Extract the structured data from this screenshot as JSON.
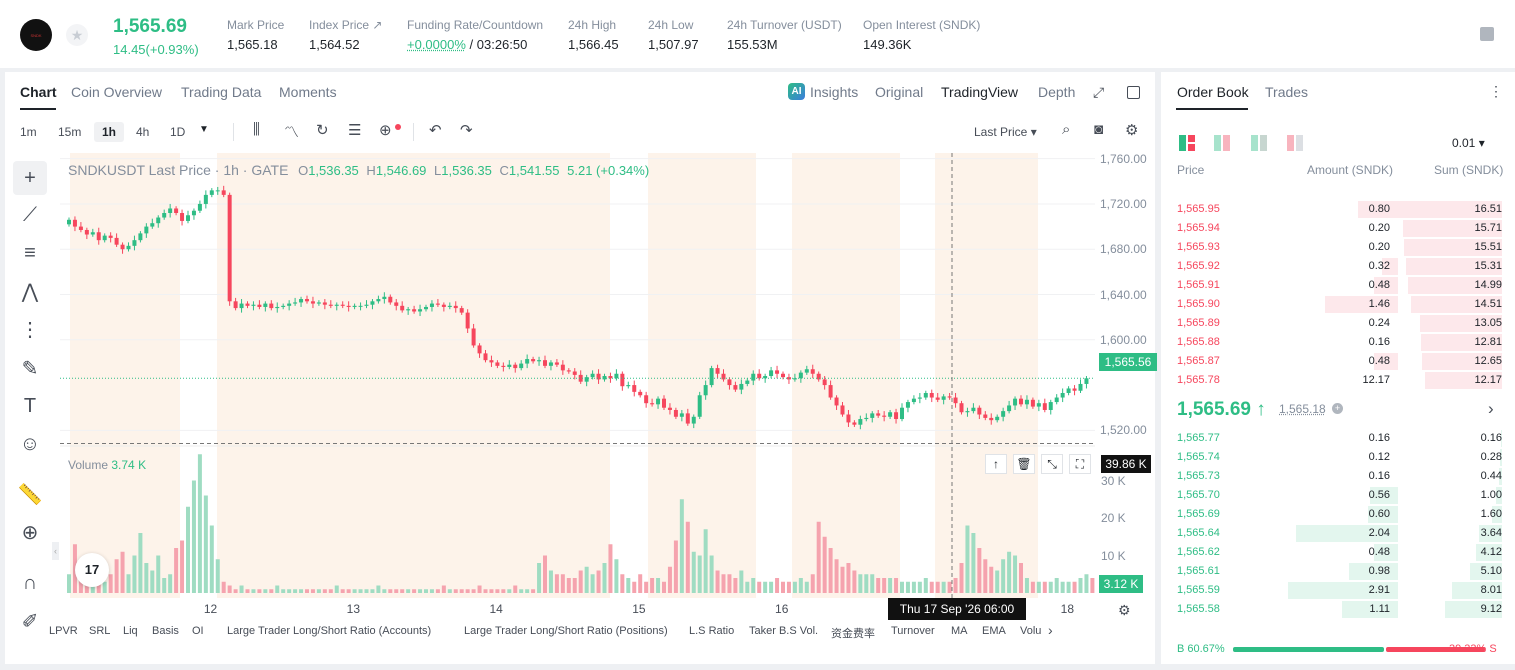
{
  "header": {
    "logo_text": "SNDK",
    "last_price": "1,565.69",
    "change": "14.45(+0.93%)",
    "stats": [
      {
        "label": "Mark Price",
        "value": "1,565.18"
      },
      {
        "label": "Index Price ↗",
        "value": "1,564.52"
      },
      {
        "label": "Funding Rate/Countdown",
        "value_up": "+0.0000%",
        "value": " / 03:26:50"
      },
      {
        "label": "24h High",
        "value": "1,566.45"
      },
      {
        "label": "24h Low",
        "value": "1,507.97"
      },
      {
        "label": "24h Turnover (USDT)",
        "value": "155.53M"
      },
      {
        "label": "Open Interest (SNDK)",
        "value": "149.36K"
      }
    ]
  },
  "chart_panel": {
    "tabs": [
      "Chart",
      "Coin Overview",
      "Trading Data",
      "Moments"
    ],
    "view_tabs": [
      "Insights",
      "Original",
      "TradingView",
      "Depth"
    ],
    "timeframes": [
      "1m",
      "15m",
      "1h",
      "4h",
      "1D"
    ],
    "price_type": "Last Price ▾",
    "legend": {
      "symbol": "SNDKUSDT Last Price · 1h · GATE",
      "o_label": "O",
      "o": "1,536.35",
      "h_label": "H",
      "h": "1,546.69",
      "l_label": "L",
      "l": "1,536.35",
      "c_label": "C",
      "c": "1,541.55",
      "chg": "5.21 (+0.34%)"
    },
    "volume_label": "Volume",
    "volume_value": "3.74 K",
    "current_price_label": "1,565.56",
    "volume_tag": "39.86 K",
    "volume_last_tag": "3.12 K",
    "crosshair_time": "Thu 17 Sep '26   06:00",
    "indicators": [
      "LPVR",
      "SRL",
      "Liq",
      "Basis",
      "OI",
      "Large Trader Long/Short Ratio (Accounts)",
      "Large Trader Long/Short Ratio (Positions)",
      "L.S Ratio",
      "Taker B.S Vol.",
      "资金费率",
      "Turnover",
      "MA",
      "EMA",
      "Volu"
    ],
    "brand_mark": "17"
  },
  "chart_data": {
    "type": "candlestick",
    "title": "SNDKUSDT Last Price · 1h · GATE",
    "y_ticks": [
      "1,760.00",
      "1,720.00",
      "1,680.00",
      "1,640.00",
      "1,600.00",
      "1,520.00"
    ],
    "y_tick_values": [
      1760,
      1720,
      1680,
      1640,
      1600,
      1520
    ],
    "volume_ticks": [
      "30 K",
      "20 K",
      "10 K"
    ],
    "volume_tick_values": [
      30000,
      20000,
      10000
    ],
    "x_ticks": [
      "12",
      "13",
      "14",
      "15",
      "16",
      "18"
    ],
    "ylim": [
      1500,
      1765
    ],
    "vol_max": 40000,
    "closes": [
      1706,
      1700,
      1697,
      1693,
      1695,
      1688,
      1692,
      1690,
      1684,
      1680,
      1683,
      1688,
      1694,
      1700,
      1703,
      1708,
      1712,
      1716,
      1712,
      1705,
      1710,
      1714,
      1720,
      1728,
      1732,
      1732,
      1728,
      1634,
      1628,
      1632,
      1630,
      1631,
      1629,
      1632,
      1628,
      1629,
      1630,
      1632,
      1633,
      1636,
      1634,
      1632,
      1633,
      1631,
      1630,
      1631,
      1630,
      1629,
      1630,
      1630,
      1631,
      1634,
      1636,
      1638,
      1633,
      1630,
      1626,
      1627,
      1625,
      1627,
      1629,
      1632,
      1631,
      1629,
      1630,
      1628,
      1624,
      1610,
      1595,
      1588,
      1582,
      1580,
      1577,
      1576,
      1578,
      1575,
      1579,
      1583,
      1581,
      1582,
      1577,
      1580,
      1578,
      1573,
      1572,
      1569,
      1563,
      1567,
      1570,
      1565,
      1568,
      1566,
      1570,
      1559,
      1560,
      1554,
      1551,
      1544,
      1543,
      1548,
      1540,
      1538,
      1532,
      1535,
      1526,
      1532,
      1551,
      1560,
      1575,
      1570,
      1565,
      1560,
      1556,
      1561,
      1564,
      1570,
      1566,
      1568,
      1573,
      1570,
      1567,
      1565,
      1566,
      1571,
      1574,
      1570,
      1565,
      1560,
      1549,
      1542,
      1534,
      1527,
      1525,
      1530,
      1531,
      1535,
      1533,
      1532,
      1536,
      1530,
      1540,
      1545,
      1548,
      1549,
      1553,
      1549,
      1547,
      1550,
      1549,
      1544,
      1536,
      1537,
      1540,
      1534,
      1531,
      1529,
      1532,
      1537,
      1542,
      1548,
      1543,
      1547,
      1541,
      1544,
      1538,
      1545,
      1549,
      1553,
      1557,
      1555,
      1561,
      1566
    ],
    "volumes": [
      5000,
      13000,
      6000,
      4000,
      8000,
      5000,
      3000,
      5000,
      9000,
      11000,
      5000,
      10000,
      16000,
      8000,
      6000,
      10000,
      4000,
      5000,
      12000,
      14000,
      23000,
      30000,
      37000,
      26000,
      18000,
      9000,
      3000,
      2000,
      1000,
      2000,
      1000,
      1000,
      1000,
      1000,
      1000,
      2000,
      1000,
      1000,
      1000,
      1000,
      1000,
      1000,
      1000,
      1000,
      1000,
      2000,
      1000,
      1000,
      1000,
      1000,
      1000,
      1000,
      2000,
      1000,
      1000,
      1000,
      1000,
      1000,
      1000,
      1000,
      1000,
      1000,
      1000,
      2000,
      1000,
      1000,
      1000,
      1000,
      1000,
      2000,
      1000,
      1000,
      1000,
      1000,
      1000,
      2000,
      1000,
      1000,
      1000,
      8000,
      10000,
      6000,
      5000,
      5000,
      4000,
      4000,
      6000,
      7000,
      5000,
      6000,
      8000,
      13000,
      9000,
      5000,
      4000,
      3000,
      5000,
      3000,
      4000,
      4000,
      3000,
      7000,
      14000,
      25000,
      19000,
      11000,
      10000,
      17000,
      10000,
      6000,
      5000,
      5000,
      4000,
      6000,
      3000,
      4000,
      3000,
      3000,
      3000,
      4000,
      3000,
      3000,
      3000,
      4000,
      3000,
      5000,
      19000,
      15000,
      12000,
      9000,
      7000,
      8000,
      6000,
      5000,
      5000,
      5000,
      4000,
      4000,
      4000,
      4000,
      3000,
      3000,
      3000,
      3000,
      4000,
      3000,
      3000,
      3000,
      3000,
      4000,
      8000,
      18000,
      16000,
      12000,
      9000,
      7000,
      6000,
      9000,
      11000,
      10000,
      8000,
      4000,
      3000,
      3000,
      3000,
      3000,
      4000,
      3000,
      3000,
      3000,
      4000,
      5000,
      4000,
      4000,
      3000
    ]
  },
  "orderbook": {
    "tabs": [
      "Order Book",
      "Trades"
    ],
    "precision": "0.01 ▾",
    "cols": [
      "Price",
      "Amount (SNDK)",
      "Sum (SNDK)"
    ],
    "asks": [
      {
        "p": "1,565.95",
        "a": "0.80",
        "s": "16.51"
      },
      {
        "p": "1,565.94",
        "a": "0.20",
        "s": "15.71"
      },
      {
        "p": "1,565.93",
        "a": "0.20",
        "s": "15.51"
      },
      {
        "p": "1,565.92",
        "a": "0.32",
        "s": "15.31"
      },
      {
        "p": "1,565.91",
        "a": "0.48",
        "s": "14.99"
      },
      {
        "p": "1,565.90",
        "a": "1.46",
        "s": "14.51"
      },
      {
        "p": "1,565.89",
        "a": "0.24",
        "s": "13.05"
      },
      {
        "p": "1,565.88",
        "a": "0.16",
        "s": "12.81"
      },
      {
        "p": "1,565.87",
        "a": "0.48",
        "s": "12.65"
      },
      {
        "p": "1,565.78",
        "a": "12.17",
        "s": "12.17"
      }
    ],
    "mid_price": "1,565.69 ↑",
    "mid_mark": "1,565.18",
    "bids": [
      {
        "p": "1,565.77",
        "a": "0.16",
        "s": "0.16"
      },
      {
        "p": "1,565.74",
        "a": "0.12",
        "s": "0.28"
      },
      {
        "p": "1,565.73",
        "a": "0.16",
        "s": "0.44"
      },
      {
        "p": "1,565.70",
        "a": "0.56",
        "s": "1.00"
      },
      {
        "p": "1,565.69",
        "a": "0.60",
        "s": "1.60"
      },
      {
        "p": "1,565.64",
        "a": "2.04",
        "s": "3.64"
      },
      {
        "p": "1,565.62",
        "a": "0.48",
        "s": "4.12"
      },
      {
        "p": "1,565.61",
        "a": "0.98",
        "s": "5.10"
      },
      {
        "p": "1,565.59",
        "a": "2.91",
        "s": "8.01"
      },
      {
        "p": "1,565.58",
        "a": "1.11",
        "s": "9.12"
      }
    ],
    "buy_ratio": "B 60.67%",
    "sell_ratio": "39.33% S",
    "buy_fraction": 0.6067,
    "colors": {
      "up": "#2ebd85",
      "down": "#f6465d"
    }
  }
}
